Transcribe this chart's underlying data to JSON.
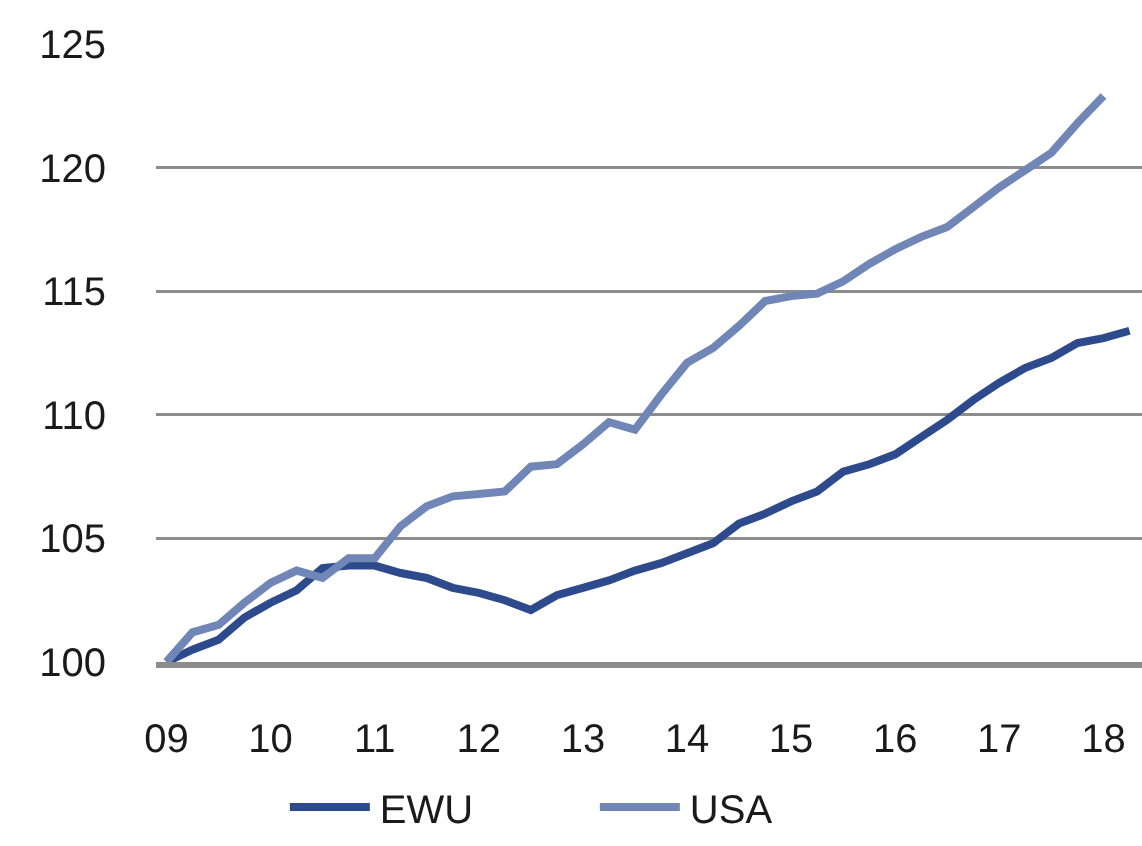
{
  "chart_data": {
    "type": "line",
    "x": [
      2009,
      2009.25,
      2009.5,
      2009.75,
      2010,
      2010.25,
      2010.5,
      2010.75,
      2011,
      2011.25,
      2011.5,
      2011.75,
      2012,
      2012.25,
      2012.5,
      2012.75,
      2013,
      2013.25,
      2013.5,
      2013.75,
      2014,
      2014.25,
      2014.5,
      2014.75,
      2015,
      2015.25,
      2015.5,
      2015.75,
      2016,
      2016.25,
      2016.5,
      2016.75,
      2017,
      2017.25,
      2017.5,
      2017.75,
      2018,
      2018.25
    ],
    "series": [
      {
        "name": "EWU",
        "color": "#2d4a8c",
        "values": [
          100.0,
          100.5,
          100.9,
          101.8,
          102.4,
          102.9,
          103.8,
          103.9,
          103.9,
          103.6,
          103.4,
          103.0,
          102.8,
          102.5,
          102.1,
          102.7,
          103.0,
          103.3,
          103.7,
          104.0,
          104.4,
          104.8,
          105.6,
          106.0,
          106.5,
          106.9,
          107.7,
          108.0,
          108.4,
          109.1,
          109.8,
          110.6,
          111.3,
          111.9,
          112.3,
          112.9,
          113.1,
          113.4
        ]
      },
      {
        "name": "USA",
        "color": "#7086b6",
        "values": [
          100.0,
          101.2,
          101.5,
          102.4,
          103.2,
          103.7,
          103.4,
          104.2,
          104.2,
          105.5,
          106.3,
          106.7,
          106.8,
          106.9,
          107.9,
          108.0,
          108.8,
          109.7,
          109.4,
          110.8,
          112.1,
          112.7,
          113.6,
          114.6,
          114.8,
          114.9,
          115.4,
          116.1,
          116.7,
          117.2,
          117.6,
          118.4,
          119.2,
          119.9,
          120.6,
          121.8,
          122.9,
          null
        ]
      }
    ],
    "xlim": [
      2008.9,
      2018.37
    ],
    "xticks": [
      {
        "value": 2009,
        "label": "09"
      },
      {
        "value": 2010,
        "label": "10"
      },
      {
        "value": 2011,
        "label": "11"
      },
      {
        "value": 2012,
        "label": "12"
      },
      {
        "value": 2013,
        "label": "13"
      },
      {
        "value": 2014,
        "label": "14"
      },
      {
        "value": 2015,
        "label": "15"
      },
      {
        "value": 2016,
        "label": "16"
      },
      {
        "value": 2017,
        "label": "17"
      },
      {
        "value": 2018,
        "label": "18"
      }
    ],
    "ylim": [
      100,
      125
    ],
    "yticks": [
      100,
      105,
      110,
      115,
      120,
      125
    ],
    "grid": "y",
    "legend": "bottom"
  }
}
